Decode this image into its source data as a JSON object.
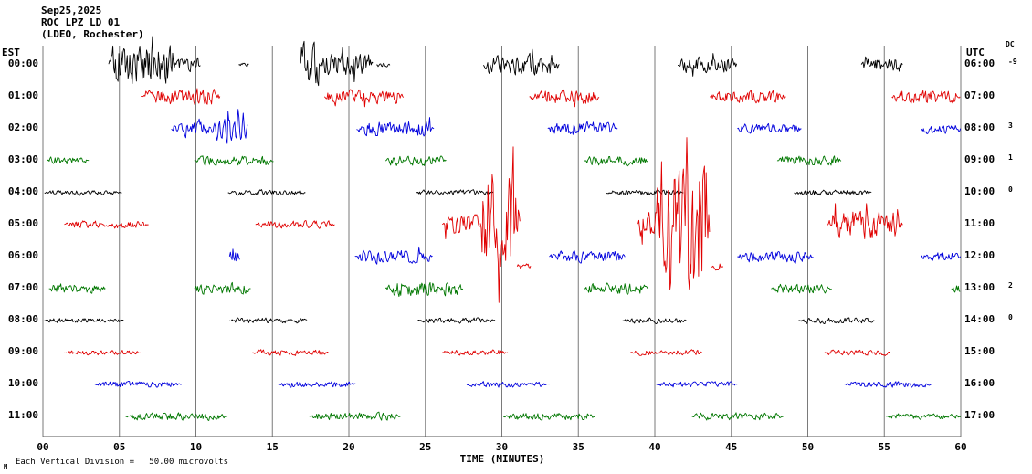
{
  "title": {
    "date": "Sep25,2025",
    "station": "ROC LPZ LD 01",
    "location": "(LDEO, Rochester)"
  },
  "axes": {
    "left_header": "EST",
    "right_header": "UTC",
    "dc_header": "DC",
    "x_label": "TIME (MINUTES)",
    "x_ticks": [
      "00",
      "05",
      "10",
      "15",
      "20",
      "25",
      "30",
      "35",
      "40",
      "45",
      "50",
      "55",
      "60"
    ],
    "footnote": "Each Vertical Division =   50.00 microvolts",
    "corner_mark": "M"
  },
  "chart_data": {
    "type": "line",
    "description": "12-hour helicorder seismogram, one 60-minute trace per row",
    "x_range": [
      0,
      60
    ],
    "x_tick_step": 5,
    "vertical_division_microvolts": 50.0,
    "colors": {
      "black": "#000000",
      "red": "#e00000",
      "blue": "#0000dd",
      "green": "#007700"
    },
    "rows": [
      {
        "est": "00:00",
        "utc": "06:00",
        "dc": "-9",
        "color": "#000000",
        "segments": [
          {
            "s": 4.3,
            "e": 8.7,
            "a": 20,
            "sp": 0.1
          },
          {
            "s": 8.7,
            "e": 10.3,
            "a": 8,
            "sp": 0.03
          },
          {
            "s": 12.8,
            "e": 13.5,
            "a": 2
          },
          {
            "s": 16.8,
            "e": 18.1,
            "a": 22,
            "sp": 0.15
          },
          {
            "s": 18.1,
            "e": 21.6,
            "a": 12,
            "sp": 0.05
          },
          {
            "s": 21.8,
            "e": 22.7,
            "a": 2
          },
          {
            "s": 28.8,
            "e": 33.8,
            "a": 11,
            "sp": 0.05
          },
          {
            "s": 41.5,
            "e": 45.4,
            "a": 8,
            "sp": 0.04
          },
          {
            "s": 53.5,
            "e": 56.2,
            "a": 7,
            "sp": 0.04
          }
        ]
      },
      {
        "est": "01:00",
        "utc": "07:00",
        "dc": "",
        "color": "#e00000",
        "segments": [
          {
            "s": 6.4,
            "e": 11.6,
            "a": 8,
            "sp": 0.03
          },
          {
            "s": 18.4,
            "e": 23.6,
            "a": 7,
            "sp": 0.03
          },
          {
            "s": 31.8,
            "e": 36.4,
            "a": 7,
            "sp": 0.03
          },
          {
            "s": 43.6,
            "e": 48.6,
            "a": 6,
            "sp": 0.02
          },
          {
            "s": 55.5,
            "e": 60,
            "a": 7,
            "sp": 0.02
          }
        ]
      },
      {
        "est": "02:00",
        "utc": "08:00",
        "dc": "3",
        "color": "#0000dd",
        "segments": [
          {
            "s": 8.4,
            "e": 11.0,
            "a": 7,
            "sp": 0.02
          },
          {
            "s": 11.0,
            "e": 13.4,
            "a": 24,
            "lf": 0.75,
            "cyc": 3.2,
            "sp": 0.02
          },
          {
            "s": 20.5,
            "e": 25.6,
            "a": 8,
            "sp": 0.02
          },
          {
            "s": 33.0,
            "e": 37.6,
            "a": 7,
            "sp": 0.02
          },
          {
            "s": 45.4,
            "e": 49.6,
            "a": 5
          },
          {
            "s": 57.4,
            "e": 60,
            "a": 5
          }
        ]
      },
      {
        "est": "03:00",
        "utc": "09:00",
        "dc": "1",
        "color": "#007700",
        "segments": [
          {
            "s": 0.3,
            "e": 3.0,
            "a": 4
          },
          {
            "s": 9.9,
            "e": 15.1,
            "a": 5
          },
          {
            "s": 22.4,
            "e": 26.4,
            "a": 5
          },
          {
            "s": 35.4,
            "e": 39.6,
            "a": 5
          },
          {
            "s": 48.0,
            "e": 52.2,
            "a": 5
          }
        ]
      },
      {
        "est": "04:00",
        "utc": "10:00",
        "dc": "0",
        "color": "#000000",
        "segments": [
          {
            "s": 0.1,
            "e": 5.2,
            "a": 2.5
          },
          {
            "s": 12.1,
            "e": 17.2,
            "a": 3
          },
          {
            "s": 24.4,
            "e": 29.5,
            "a": 3
          },
          {
            "s": 36.8,
            "e": 41.9,
            "a": 3
          },
          {
            "s": 49.1,
            "e": 54.2,
            "a": 3
          }
        ]
      },
      {
        "est": "05:00",
        "utc": "11:00",
        "dc": "",
        "color": "#e00000",
        "segments": [
          {
            "s": 1.4,
            "e": 6.9,
            "a": 4
          },
          {
            "s": 13.9,
            "e": 19.1,
            "a": 4
          },
          {
            "s": 26.1,
            "e": 28.6,
            "a": 10,
            "sp": 0.05
          },
          {
            "s": 28.6,
            "e": 31.2,
            "a": 55,
            "sp": 0.18
          },
          {
            "s": 31.0,
            "e": 31.9,
            "a": 3,
            "off": -46
          },
          {
            "s": 38.9,
            "e": 40.0,
            "a": 14,
            "sp": 0.05
          },
          {
            "s": 40.0,
            "e": 43.6,
            "a": 70,
            "sp": 0.2
          },
          {
            "s": 43.7,
            "e": 44.5,
            "a": 4,
            "off": -46
          },
          {
            "s": 51.3,
            "e": 56.2,
            "a": 15,
            "sp": 0.06
          }
        ]
      },
      {
        "est": "06:00",
        "utc": "12:00",
        "dc": "",
        "color": "#0000dd",
        "segments": [
          {
            "s": 12.2,
            "e": 12.9,
            "a": 10,
            "lf": 0.6,
            "cyc": 6
          },
          {
            "s": 20.4,
            "e": 25.5,
            "a": 7,
            "sp": 0.02
          },
          {
            "s": 33.1,
            "e": 38.1,
            "a": 6
          },
          {
            "s": 45.4,
            "e": 50.4,
            "a": 6
          },
          {
            "s": 57.4,
            "e": 60,
            "a": 5
          }
        ]
      },
      {
        "est": "07:00",
        "utc": "13:00",
        "dc": "2",
        "color": "#007700",
        "segments": [
          {
            "s": 0.4,
            "e": 4.1,
            "a": 5
          },
          {
            "s": 9.9,
            "e": 13.6,
            "a": 6
          },
          {
            "s": 22.4,
            "e": 27.5,
            "a": 8
          },
          {
            "s": 35.4,
            "e": 39.6,
            "a": 6
          },
          {
            "s": 47.6,
            "e": 51.6,
            "a": 5
          },
          {
            "s": 59.4,
            "e": 60,
            "a": 4
          }
        ]
      },
      {
        "est": "08:00",
        "utc": "14:00",
        "dc": "0",
        "color": "#000000",
        "segments": [
          {
            "s": 0.1,
            "e": 5.3,
            "a": 2.5
          },
          {
            "s": 12.2,
            "e": 17.3,
            "a": 3
          },
          {
            "s": 24.5,
            "e": 29.6,
            "a": 3
          },
          {
            "s": 37.9,
            "e": 42.1,
            "a": 3
          },
          {
            "s": 49.4,
            "e": 54.4,
            "a": 3
          }
        ]
      },
      {
        "est": "09:00",
        "utc": "15:00",
        "dc": "",
        "color": "#e00000",
        "segments": [
          {
            "s": 1.4,
            "e": 6.4,
            "a": 2.5
          },
          {
            "s": 13.7,
            "e": 18.7,
            "a": 3
          },
          {
            "s": 26.1,
            "e": 30.4,
            "a": 3
          },
          {
            "s": 38.4,
            "e": 43.1,
            "a": 3
          },
          {
            "s": 51.1,
            "e": 55.4,
            "a": 3
          }
        ]
      },
      {
        "est": "10:00",
        "utc": "16:00",
        "dc": "",
        "color": "#0000dd",
        "segments": [
          {
            "s": 3.4,
            "e": 9.1,
            "a": 3
          },
          {
            "s": 15.4,
            "e": 20.5,
            "a": 3
          },
          {
            "s": 27.7,
            "e": 33.1,
            "a": 3
          },
          {
            "s": 40.1,
            "e": 45.4,
            "a": 3
          },
          {
            "s": 52.4,
            "e": 58.1,
            "a": 3
          }
        ]
      },
      {
        "est": "11:00",
        "utc": "17:00",
        "dc": "",
        "color": "#007700",
        "segments": [
          {
            "s": 5.4,
            "e": 12.1,
            "a": 4
          },
          {
            "s": 17.4,
            "e": 23.4,
            "a": 4
          },
          {
            "s": 30.1,
            "e": 36.1,
            "a": 4
          },
          {
            "s": 42.4,
            "e": 48.4,
            "a": 4
          },
          {
            "s": 55.1,
            "e": 60,
            "a": 3
          }
        ]
      }
    ]
  }
}
